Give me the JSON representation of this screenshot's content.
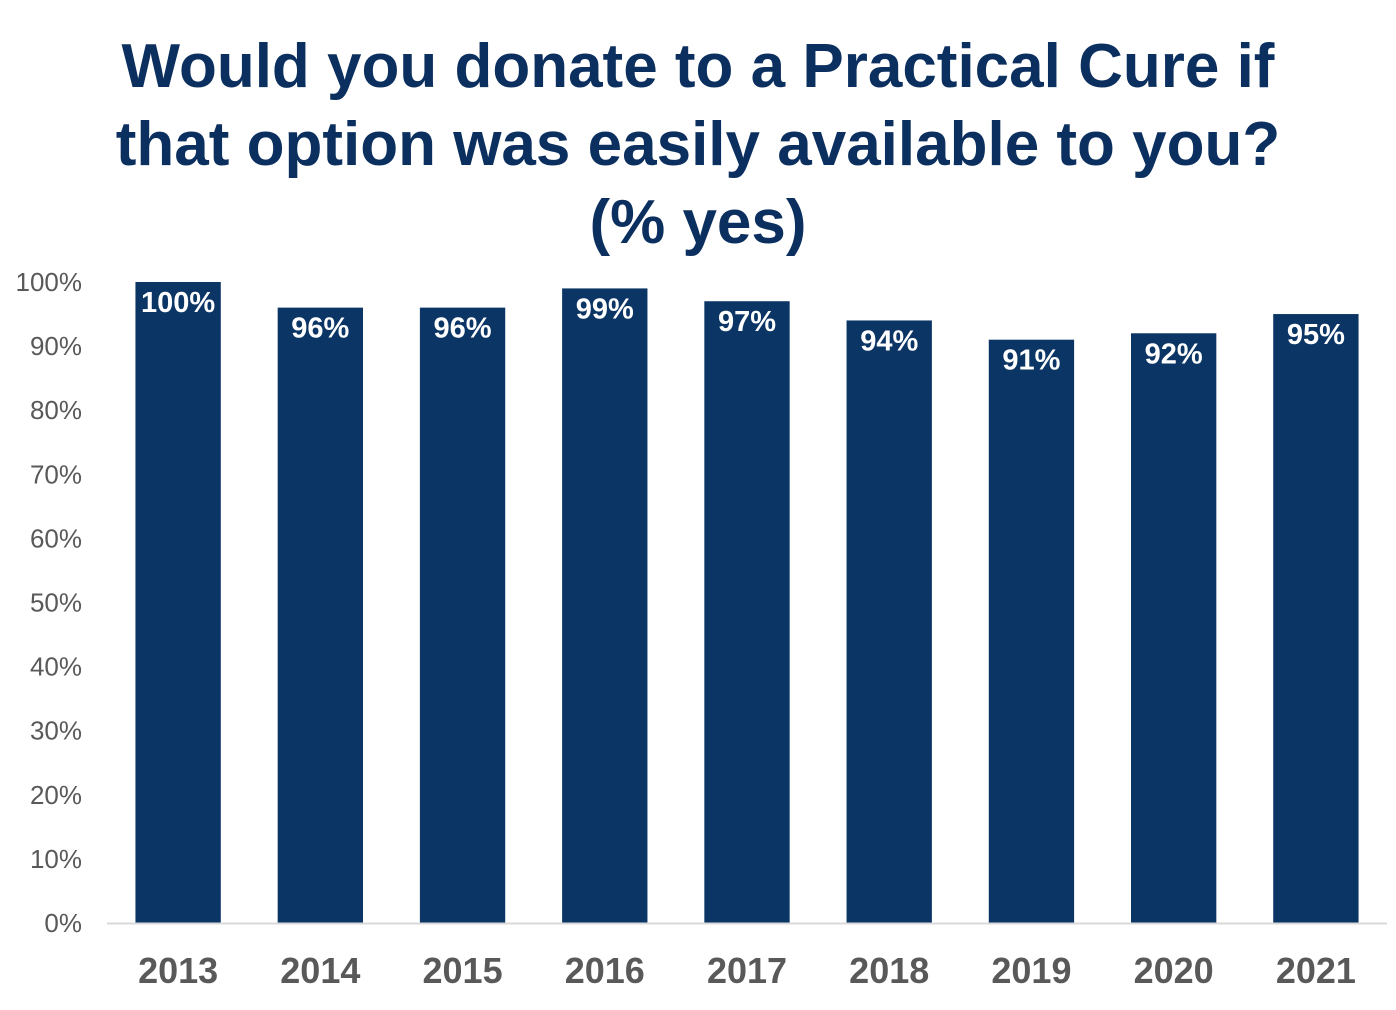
{
  "chart_data": {
    "type": "bar",
    "title_lines": [
      "Would you donate to a Practical Cure if",
      "that option was easily available to you?",
      "(% yes)"
    ],
    "categories": [
      "2013",
      "2014",
      "2015",
      "2016",
      "2017",
      "2018",
      "2019",
      "2020",
      "2021"
    ],
    "values": [
      100,
      96,
      96,
      99,
      97,
      94,
      91,
      92,
      95
    ],
    "data_labels": [
      "100%",
      "96%",
      "96%",
      "99%",
      "97%",
      "94%",
      "91%",
      "92%",
      "95%"
    ],
    "y_ticks": [
      "0%",
      "10%",
      "20%",
      "30%",
      "40%",
      "50%",
      "60%",
      "70%",
      "80%",
      "90%",
      "100%"
    ],
    "ylim": [
      0,
      100
    ],
    "xlabel": "",
    "ylabel": "",
    "grid": false,
    "legend": "none",
    "bar_color": "#0b3564",
    "title_color": "#0b2f5e",
    "tick_color": "#595959",
    "axis_color": "#d9d9d9"
  }
}
